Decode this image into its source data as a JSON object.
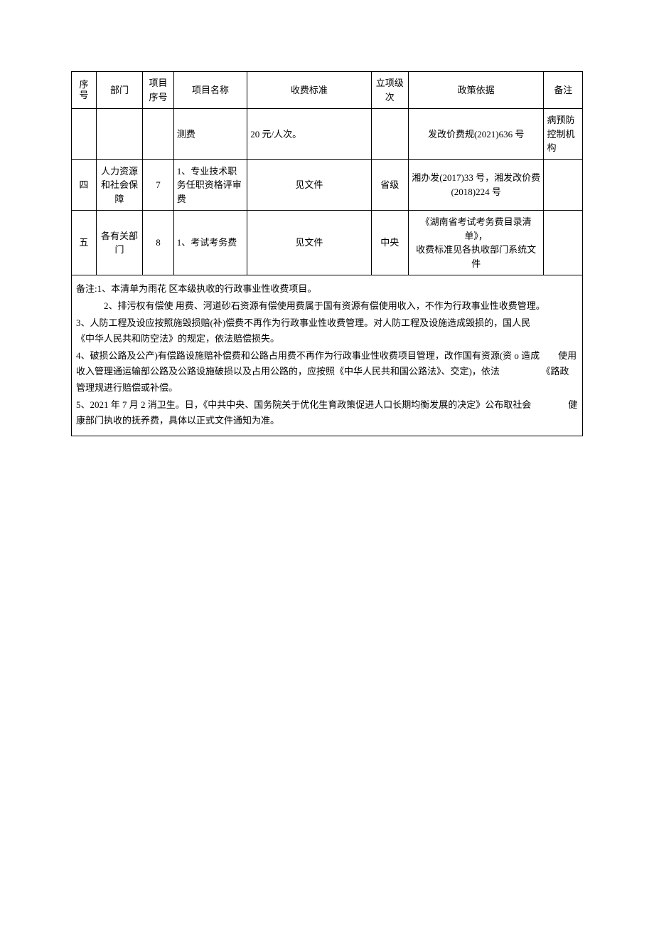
{
  "table": {
    "headers": {
      "seq": "序号",
      "dept": "部门",
      "projSeq": "项目序号",
      "projName": "项目名称",
      "standard": "收费标准",
      "level": "立项级次",
      "policy": "政策依据",
      "note": "备注"
    },
    "rows": [
      {
        "seq": "",
        "dept": "",
        "projSeq": "",
        "projName": "测费",
        "standard": "20 元/人次。",
        "level": "",
        "policy": "发改价费规(2021)636 号",
        "note": "病预防控制机构"
      },
      {
        "seq": "四",
        "dept": "人力资源和社会保障",
        "projSeq": "7",
        "projName": "1、专业技术职务任职资格评审费",
        "standard": "见文件",
        "level": "省级",
        "policy": "湘办发(2017)33 号，湘发改价费(2018)224 号",
        "note": ""
      },
      {
        "seq": "五",
        "dept": "各有关部门",
        "projSeq": "8",
        "projName": "1、考试考务费",
        "standard": "见文件",
        "level": "中央",
        "policy": "《湖南省考试考务费目录清单》，\n收费标准见各执收部门系统文件",
        "note": ""
      }
    ],
    "notes": {
      "line1": "备注:1、本清单为雨花   区本级执收的行政事业性收费项目。",
      "line2": "　　　2、排污权有偿使 用费、河道砂石资源有偿使用费属于国有资源有偿使用收入，不作为行政事业性收费管理。",
      "line3": " 3、人防工程及设应按照施毁损赔(补)偿费不再作为行政事业性收费管理。对人防工程及设施造成毁损的，国人民　　　　《中华人民共和防空法》的规定，依法赔偿损失。",
      "line4": "4、破损公路及公产)有偿路设施赔补偿费和公路占用费不再作为行政事业性收费项目管理，改作国有资源(资 o 造成　　使用收入管理通运输部公路及公路设施破损以及占用公路的，应按照《中华人民共和国公路法》、交定)，依法　　　　　《路政管理规进行赔偿或补偿。",
      "line5": "5、2021 年 7 月 2 消卫生。日，《中共中央、国务院关于优化生育政策促进人口长期均衡发展的决定》公布取社会　　　　健康部门执收的抚养费，具体以正式文件通知为准。"
    }
  },
  "style": {
    "border_color": "#000000",
    "background_color": "#ffffff",
    "font_size": 13,
    "font_family": "SimSun"
  }
}
